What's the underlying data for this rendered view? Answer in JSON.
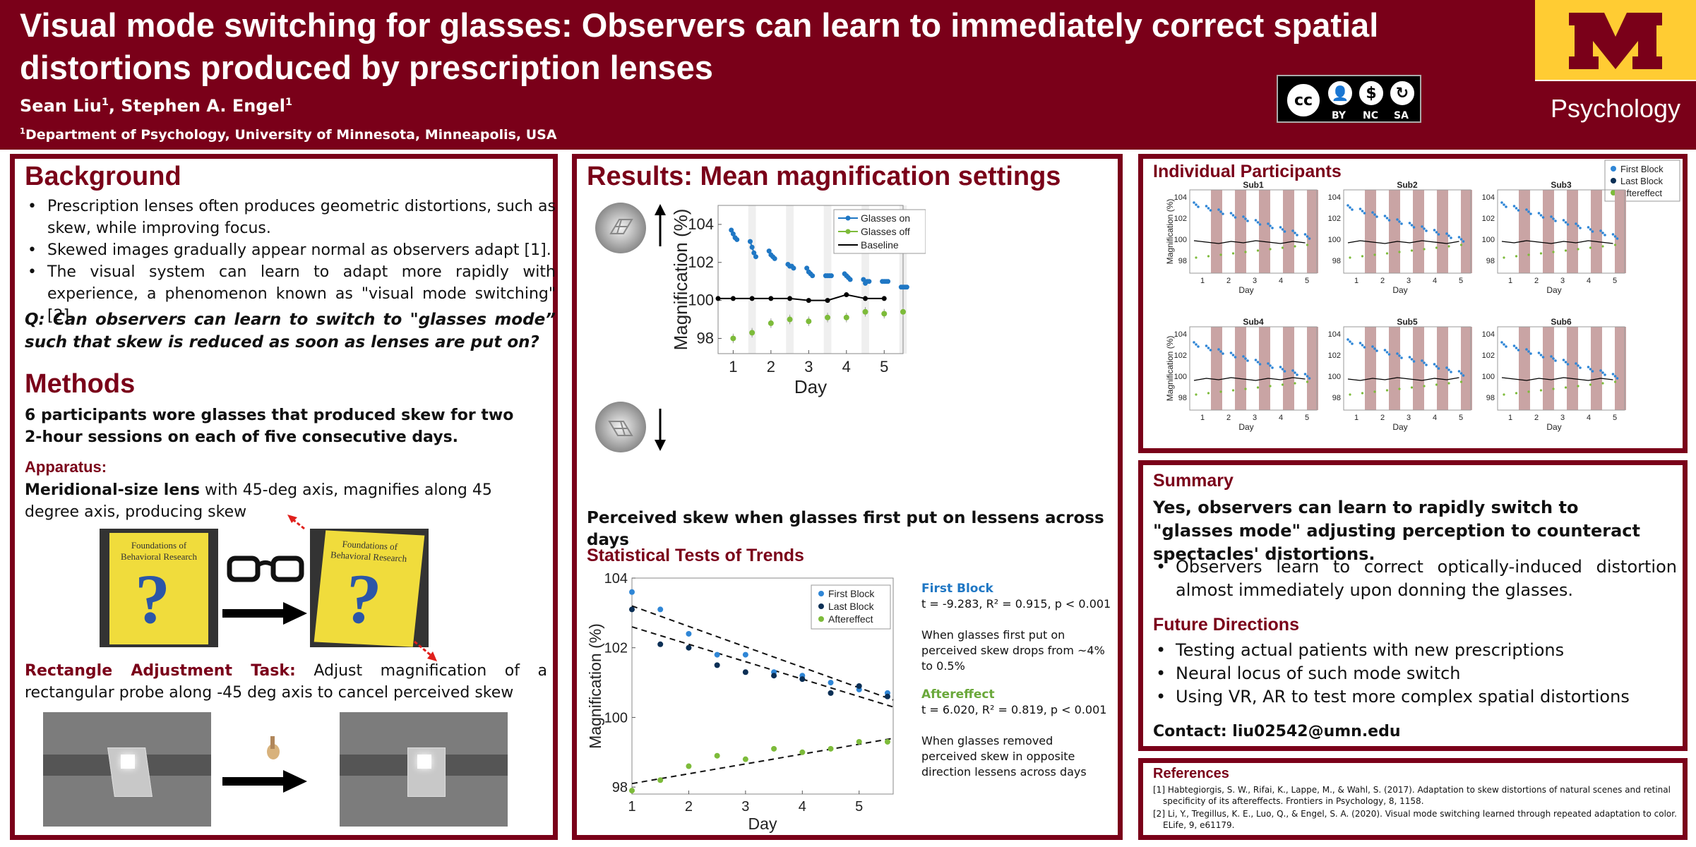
{
  "header": {
    "title": "Visual mode switching for glasses: Observers can learn to immediately correct spatial distortions produced by prescription lenses",
    "authors_prefix": "Sean Liu",
    "authors_mid": ", Stephen A. Engel",
    "author_sup": "1",
    "affiliation": "Department of Psychology, University of Minnesota, Minneapolis, USA",
    "cc_labels": [
      "BY",
      "NC",
      "SA"
    ],
    "cc_main": "cc",
    "logo_letter": "M",
    "logo_text": "Psychology",
    "colors": {
      "maroon": "#7a0019",
      "gold": "#ffcc33"
    }
  },
  "background": {
    "heading": "Background",
    "bullets": [
      "Prescription lenses often produces geometric distortions, such as skew, while improving focus.",
      "Skewed images gradually appear normal as observers adapt [1].",
      "The visual system can learn to adapt more rapidly with experience, a phenomenon known as \"visual mode switching\" [2]."
    ],
    "question": "Q: Can observers can learn to switch to \"glasses mode” such that skew is reduced as soon as lenses are put on?"
  },
  "methods": {
    "heading": "Methods",
    "intro": "6 participants wore glasses that produced skew for two 2-hour sessions on each of five consecutive days.",
    "apparatus_heading": "Apparatus:",
    "apparatus_bold": "Meridional-size lens",
    "apparatus_text": " with 45-deg axis, magnifies along 45 degree axis, producing skew",
    "book_title": "Foundations of Behavioral Research",
    "book_mark": "?",
    "task_heading": "Rectangle Adjustment Task:",
    "task_text": " Adjust magnification of a rectangular probe along -45 deg axis to cancel perceived skew"
  },
  "results": {
    "heading": "Results: Mean magnification settings",
    "caption": "Perceived skew when glasses first put on lessens across days",
    "stats_heading": "Statistical Tests of Trends",
    "first_block_label": "First Block",
    "first_block_stat": "t = -9.283, R² = 0.915, p < 0.001",
    "first_block_desc": "When glasses first put on perceived skew drops from ~4% to 0.5%",
    "aftereffect_label": "Aftereffect",
    "aftereffect_stat": "t = 6.020, R² = 0.819, p < 0.001",
    "aftereffect_desc": "When glasses removed perceived skew in opposite direction lessens across days"
  },
  "individual": {
    "heading": "Individual Participants",
    "legend": [
      "First Block",
      "Last Block",
      "Aftereffect"
    ],
    "subjects": [
      "Sub1",
      "Sub2",
      "Sub3",
      "Sub4",
      "Sub5",
      "Sub6"
    ],
    "ylabel": "Magnification (%)",
    "xlabel": "Day",
    "yticks": [
      "104",
      "102",
      "100",
      "98"
    ],
    "xticks": [
      "1",
      "2",
      "3",
      "4",
      "5"
    ]
  },
  "summary": {
    "heading": "Summary",
    "main": "Yes, observers can learn to rapidly switch to \"glasses mode\" adjusting perception to counteract spectacles' distortions.",
    "bullet": "Observers learn to correct optically-induced distortion almost immediately upon donning the glasses.",
    "future_heading": "Future Directions",
    "future": [
      "Testing actual patients with new prescriptions",
      "Neural locus of such mode switch",
      "Using VR, AR to test more complex spatial distortions"
    ],
    "contact": "Contact: liu02542@umn.edu"
  },
  "references": {
    "heading": "References",
    "items": [
      "[1] Habtegiorgis, S. W., Rifai, K., Lappe, M., & Wahl, S. (2017). Adaptation to skew distortions of natural scenes and retinal specificity of its aftereffects. Frontiers in Psychology, 8, 1158.",
      "[2] Li, Y., Tregillus, K. E., Luo, Q., & Engel, S. A. (2020). Visual mode switching learned through repeated adaptation to color. ELife, 9, e61179."
    ]
  },
  "chart_data": [
    {
      "type": "line",
      "xlabel": "Day",
      "ylabel": "Magnification (%)",
      "xlim": [
        0.6,
        5.5
      ],
      "ylim": [
        97.2,
        105
      ],
      "xticks": [
        1,
        2,
        3,
        4,
        5
      ],
      "yticks": [
        98,
        100,
        102,
        104
      ],
      "legend": "top-right",
      "series": [
        {
          "name": "Glasses on",
          "color": "#1f77c4",
          "segments": [
            [
              [
                0.95,
                103.7
              ],
              [
                1.0,
                103.5
              ],
              [
                1.05,
                103.3
              ],
              [
                1.1,
                103.2
              ]
            ],
            [
              [
                1.45,
                103.1
              ],
              [
                1.5,
                102.8
              ],
              [
                1.55,
                102.5
              ],
              [
                1.6,
                102.3
              ]
            ],
            [
              [
                1.95,
                102.6
              ],
              [
                2.0,
                102.4
              ],
              [
                2.05,
                102.3
              ],
              [
                2.1,
                102.2
              ]
            ],
            [
              [
                2.45,
                101.9
              ],
              [
                2.5,
                101.8
              ],
              [
                2.55,
                101.8
              ],
              [
                2.6,
                101.7
              ]
            ],
            [
              [
                2.95,
                101.7
              ],
              [
                3.0,
                101.5
              ],
              [
                3.05,
                101.4
              ],
              [
                3.1,
                101.3
              ]
            ],
            [
              [
                3.45,
                101.3
              ],
              [
                3.5,
                101.3
              ],
              [
                3.55,
                101.3
              ],
              [
                3.6,
                101.3
              ]
            ],
            [
              [
                3.95,
                101.4
              ],
              [
                4.0,
                101.3
              ],
              [
                4.05,
                101.2
              ],
              [
                4.1,
                101.1
              ]
            ],
            [
              [
                4.45,
                101.1
              ],
              [
                4.5,
                100.9
              ],
              [
                4.55,
                101.0
              ],
              [
                4.6,
                101.0
              ]
            ],
            [
              [
                4.95,
                101.0
              ],
              [
                5.0,
                101.0
              ],
              [
                5.05,
                101.0
              ],
              [
                5.1,
                101.0
              ]
            ],
            [
              [
                5.45,
                100.7
              ],
              [
                5.5,
                100.7
              ],
              [
                5.55,
                100.7
              ],
              [
                5.6,
                100.7
              ]
            ]
          ]
        },
        {
          "name": "Glasses off",
          "color": "#7dbb3a",
          "points": [
            [
              1.0,
              98.0
            ],
            [
              1.5,
              98.3
            ],
            [
              2.0,
              98.8
            ],
            [
              2.5,
              99.0
            ],
            [
              3.0,
              98.9
            ],
            [
              3.5,
              99.1
            ],
            [
              4.0,
              99.1
            ],
            [
              4.5,
              99.4
            ],
            [
              5.0,
              99.3
            ],
            [
              5.5,
              99.4
            ]
          ]
        },
        {
          "name": "Baseline",
          "color": "#000000",
          "points": [
            [
              0.6,
              100.1
            ],
            [
              1.0,
              100.1
            ],
            [
              1.5,
              100.1
            ],
            [
              2.0,
              100.1
            ],
            [
              2.5,
              100.1
            ],
            [
              3.0,
              100.0
            ],
            [
              3.5,
              100.0
            ],
            [
              4.0,
              100.3
            ],
            [
              4.5,
              100.1
            ],
            [
              5.0,
              100.1
            ]
          ]
        }
      ]
    },
    {
      "type": "scatter",
      "xlabel": "Day",
      "ylabel": "Magnification (%)",
      "xlim": [
        1,
        5.6
      ],
      "ylim": [
        97.8,
        104
      ],
      "xticks": [
        1,
        2,
        3,
        4,
        5
      ],
      "yticks": [
        98,
        100,
        102,
        104
      ],
      "legend": "top-right",
      "series": [
        {
          "name": "First Block",
          "color": "#2f86d6",
          "points": [
            [
              1.0,
              103.6
            ],
            [
              1.5,
              103.1
            ],
            [
              2.0,
              102.4
            ],
            [
              2.5,
              101.8
            ],
            [
              3.0,
              101.8
            ],
            [
              3.5,
              101.3
            ],
            [
              4.0,
              101.2
            ],
            [
              4.5,
              101.0
            ],
            [
              5.0,
              100.8
            ],
            [
              5.5,
              100.7
            ]
          ]
        },
        {
          "name": "Last Block",
          "color": "#0b2f55",
          "points": [
            [
              1.0,
              103.1
            ],
            [
              1.5,
              102.1
            ],
            [
              2.0,
              102.0
            ],
            [
              2.5,
              101.5
            ],
            [
              3.0,
              101.3
            ],
            [
              3.5,
              101.2
            ],
            [
              4.0,
              101.1
            ],
            [
              4.5,
              100.7
            ],
            [
              5.0,
              100.9
            ],
            [
              5.5,
              100.6
            ]
          ]
        },
        {
          "name": "Aftereffect",
          "color": "#7dbb3a",
          "points": [
            [
              1.0,
              97.9
            ],
            [
              1.5,
              98.2
            ],
            [
              2.0,
              98.6
            ],
            [
              2.5,
              98.9
            ],
            [
              3.0,
              98.8
            ],
            [
              3.5,
              99.1
            ],
            [
              4.0,
              99.0
            ],
            [
              4.5,
              99.1
            ],
            [
              5.0,
              99.3
            ],
            [
              5.5,
              99.3
            ]
          ]
        }
      ],
      "trendlines": [
        {
          "from": [
            1.0,
            103.2
          ],
          "to": [
            5.6,
            100.5
          ]
        },
        {
          "from": [
            1.0,
            102.6
          ],
          "to": [
            5.6,
            100.3
          ]
        },
        {
          "from": [
            1.0,
            98.1
          ],
          "to": [
            5.6,
            99.4
          ]
        }
      ]
    }
  ]
}
